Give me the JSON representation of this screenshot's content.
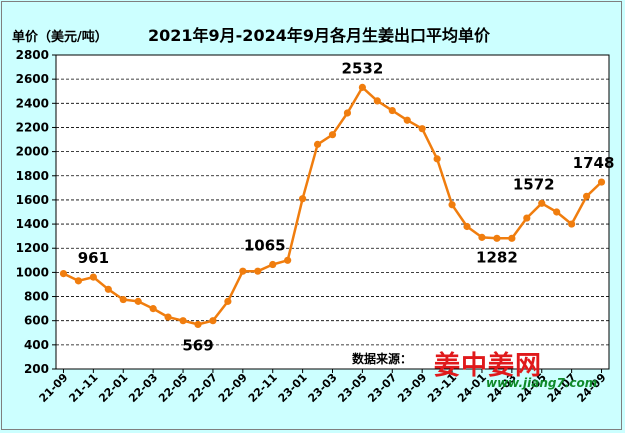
{
  "unit_label": "单价（美元/吨）",
  "source_label": "数据来源：",
  "watermark": {
    "main": "姜中姜网",
    "url": "www.jiang7.com"
  },
  "colors": {
    "line": "#f07d0e",
    "background": "#ccffff",
    "plot_area": "#ffffff",
    "grid": "#000000"
  },
  "chart_data": {
    "type": "line",
    "title": "2021年9月-2024年9月各月生姜出口平均单价",
    "xlabel": "",
    "ylabel": "单价（美元/吨）",
    "ylim": [
      200,
      2800
    ],
    "yticks": [
      200,
      400,
      600,
      800,
      1000,
      1200,
      1400,
      1600,
      1800,
      2000,
      2200,
      2400,
      2600,
      2800
    ],
    "grid": "horizontal dashed",
    "legend": "none",
    "x_tick_labels": [
      "21-09",
      "21-11",
      "22-01",
      "22-03",
      "22-05",
      "22-07",
      "22-09",
      "22-11",
      "23-01",
      "23-03",
      "23-05",
      "23-07",
      "23-09",
      "23-11",
      "24-01",
      "24-03",
      "24-05",
      "24-07",
      "24-09"
    ],
    "x": [
      "21-09",
      "21-10",
      "21-11",
      "21-12",
      "22-01",
      "22-02",
      "22-03",
      "22-04",
      "22-05",
      "22-06",
      "22-07",
      "22-08",
      "22-09",
      "22-10",
      "22-11",
      "22-12",
      "23-01",
      "23-02",
      "23-03",
      "23-04",
      "23-05",
      "23-06",
      "23-07",
      "23-08",
      "23-09",
      "23-10",
      "23-11",
      "23-12",
      "24-01",
      "24-02",
      "24-03",
      "24-04",
      "24-05",
      "24-06",
      "24-07",
      "24-08",
      "24-09"
    ],
    "series": [
      {
        "values": [
          990,
          930,
          961,
          860,
          775,
          760,
          700,
          630,
          600,
          569,
          600,
          760,
          1010,
          1010,
          1065,
          1100,
          1610,
          2060,
          2140,
          2320,
          2532,
          2420,
          2340,
          2260,
          2190,
          1940,
          1560,
          1380,
          1290,
          1282,
          1282,
          1450,
          1572,
          1500,
          1400,
          1630,
          1748
        ]
      }
    ],
    "annotations": [
      {
        "x": "21-11",
        "label": "961"
      },
      {
        "x": "22-06",
        "label": "569"
      },
      {
        "x": "22-11",
        "label": "1065"
      },
      {
        "x": "23-05",
        "label": "2532"
      },
      {
        "x": "24-02",
        "label": "1282"
      },
      {
        "x": "24-05",
        "label": "1572"
      },
      {
        "x": "24-09",
        "label": "1748"
      }
    ]
  }
}
